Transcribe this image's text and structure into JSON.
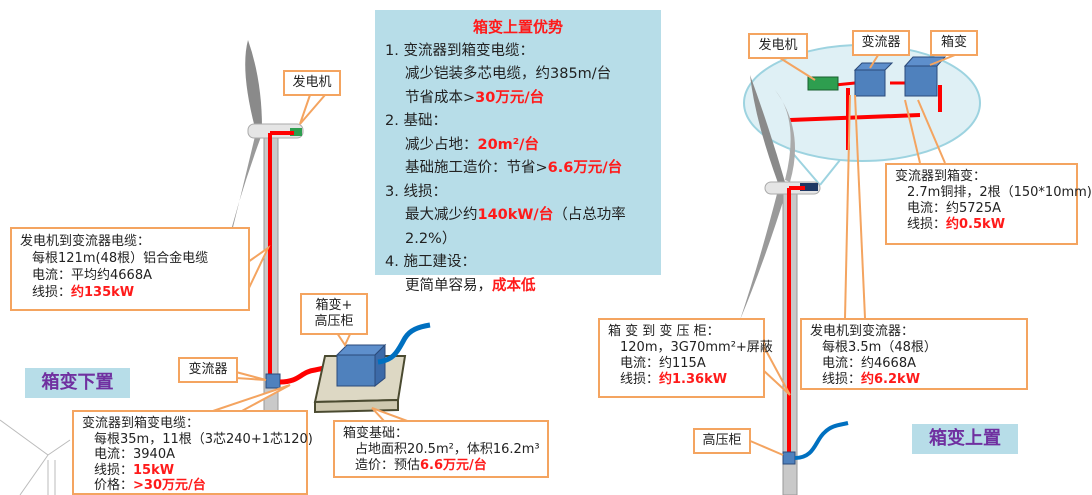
{
  "advantages": {
    "title": "箱变上置优势",
    "items": [
      {
        "heading": "1. 变流器到箱变电缆：",
        "lines": [
          {
            "text": "减少铠装多芯电缆，约385m/台",
            "highlight": ""
          },
          {
            "text": "节省成本>",
            "highlight": "30万元/台"
          }
        ]
      },
      {
        "heading": "2. 基础：",
        "lines": [
          {
            "text": "减少占地：",
            "highlight": "20m²/台"
          },
          {
            "text": "基础施工造价：节省>",
            "highlight": "6.6万元/台"
          }
        ]
      },
      {
        "heading": "3. 线损：",
        "lines": [
          {
            "text": "最大减少约",
            "highlight": "140kW/台",
            "suffix": "（占总功率2.2%）"
          }
        ]
      },
      {
        "heading": "4. 施工建设：",
        "lines": [
          {
            "text": "更简单容易，",
            "highlight": "成本低"
          }
        ]
      }
    ]
  },
  "left": {
    "tag": "箱变下置",
    "labels": {
      "generator": "发电机",
      "converter": "变流器",
      "box_transformer_line1": "箱变+",
      "box_transformer_line2": "高压柜"
    },
    "gen_to_conv": {
      "title": "发电机到变流器电缆：",
      "line1": "每根121m(48根）铝合金电缆",
      "line2": "电流：平均约4668A",
      "loss_label": "线损：",
      "loss_value": "约135kW"
    },
    "conv_to_box": {
      "title": "变流器到箱变电缆：",
      "line1": "每根35m，11根（3芯240+1芯120)",
      "line2": "电流：3940A",
      "loss_label": "线损：",
      "loss_value": "15kW",
      "price_label": "价格：",
      "price_value": ">30万元/台"
    },
    "foundation": {
      "title": "箱变基础：",
      "line1": "占地面积20.5m²，体积16.2m³",
      "cost_label": "造价：预估",
      "cost_value": "6.6万元/台"
    }
  },
  "right": {
    "tag": "箱变上置",
    "labels": {
      "generator": "发电机",
      "converter": "变流器",
      "box_transformer": "箱变",
      "hv_cabinet": "高压柜"
    },
    "conv_to_box": {
      "title": "变流器到箱变：",
      "line1": "2.7m铜排，2根（150*10mm)",
      "line2": "电流：约5725A",
      "loss_label": "线损：",
      "loss_value": "约0.5kW"
    },
    "box_to_cabinet": {
      "title": "箱 变 到 变 压 柜：",
      "line1": "120m，3G70mm²+屏蔽",
      "line2": "电流：约115A",
      "loss_label": "线损：",
      "loss_value": "约1.36kW"
    },
    "gen_to_conv": {
      "title": "发电机到变流器：",
      "line1": "每根3.5m（48根）",
      "line2": "电流：约4668A",
      "loss_label": "线损：",
      "loss_value": "约6.2kW"
    }
  },
  "colors": {
    "cable": "#ff0000",
    "panel": "#b7dde8",
    "callout_border": "#f4a460",
    "equipment": "#4f81bd",
    "tag_text": "#7030a0"
  }
}
